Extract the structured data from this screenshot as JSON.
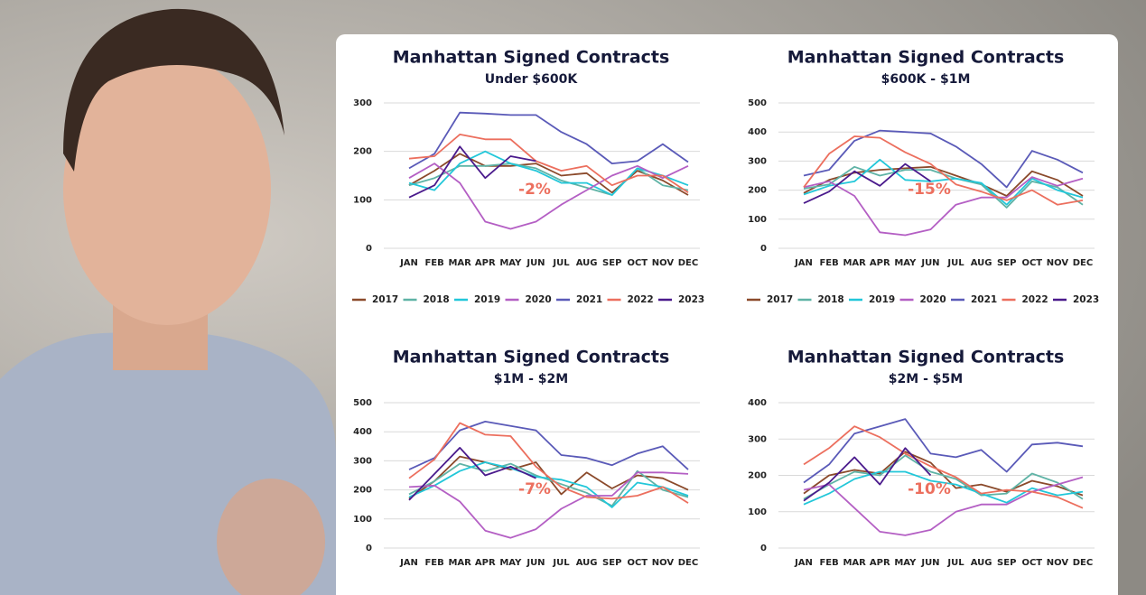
{
  "chart_data": [
    {
      "type": "line",
      "title": "Manhattan Signed Contracts",
      "subtitle": "Under $600K",
      "annotation": "-2%",
      "categories": [
        "JAN",
        "FEB",
        "MAR",
        "APR",
        "MAY",
        "JUN",
        "JUL",
        "AUG",
        "SEP",
        "OCT",
        "NOV",
        "DEC"
      ],
      "ylim": [
        0,
        300
      ],
      "yticks": [
        0,
        100,
        200,
        300
      ],
      "grid": true,
      "series": [
        {
          "name": "2017",
          "color": "#8b4a2b",
          "values": [
            130,
            160,
            195,
            170,
            170,
            175,
            150,
            155,
            115,
            160,
            140,
            110
          ]
        },
        {
          "name": "2018",
          "color": "#5fb3a6",
          "values": [
            130,
            145,
            170,
            170,
            175,
            165,
            140,
            125,
            110,
            165,
            130,
            120
          ]
        },
        {
          "name": "2019",
          "color": "#22c7d9",
          "values": [
            135,
            120,
            175,
            200,
            175,
            160,
            135,
            135,
            110,
            165,
            150,
            130
          ]
        },
        {
          "name": "2020",
          "color": "#b45fc4",
          "values": [
            145,
            175,
            135,
            55,
            40,
            55,
            90,
            120,
            150,
            170,
            145,
            170
          ]
        },
        {
          "name": "2021",
          "color": "#5a5ab8",
          "values": [
            165,
            195,
            280,
            278,
            275,
            275,
            240,
            215,
            175,
            180,
            215,
            178
          ]
        },
        {
          "name": "2022",
          "color": "#ec6f5e",
          "values": [
            185,
            190,
            235,
            225,
            225,
            180,
            160,
            170,
            130,
            150,
            150,
            115
          ]
        },
        {
          "name": "2023",
          "color": "#4a1a8c",
          "values": [
            105,
            130,
            210,
            145,
            190,
            180,
            null,
            null,
            null,
            null,
            null,
            null
          ]
        }
      ]
    },
    {
      "type": "line",
      "title": "Manhattan Signed Contracts",
      "subtitle": "$600K - $1M",
      "annotation": "-15%",
      "categories": [
        "JAN",
        "FEB",
        "MAR",
        "APR",
        "MAY",
        "JUN",
        "JUL",
        "AUG",
        "SEP",
        "OCT",
        "NOV",
        "DEC"
      ],
      "ylim": [
        0,
        500
      ],
      "yticks": [
        0,
        100,
        200,
        300,
        400,
        500
      ],
      "grid": true,
      "series": [
        {
          "name": "2017",
          "color": "#8b4a2b",
          "values": [
            190,
            235,
            260,
            270,
            275,
            280,
            250,
            220,
            180,
            265,
            235,
            180
          ]
        },
        {
          "name": "2018",
          "color": "#5fb3a6",
          "values": [
            205,
            220,
            280,
            250,
            270,
            270,
            240,
            220,
            140,
            230,
            210,
            150
          ]
        },
        {
          "name": "2019",
          "color": "#22c7d9",
          "values": [
            185,
            215,
            230,
            305,
            235,
            230,
            240,
            225,
            150,
            240,
            200,
            175
          ]
        },
        {
          "name": "2020",
          "color": "#b45fc4",
          "values": [
            210,
            230,
            180,
            55,
            45,
            65,
            150,
            175,
            175,
            245,
            215,
            240
          ]
        },
        {
          "name": "2021",
          "color": "#5a5ab8",
          "values": [
            250,
            270,
            370,
            405,
            400,
            395,
            350,
            290,
            210,
            335,
            305,
            260
          ]
        },
        {
          "name": "2022",
          "color": "#ec6f5e",
          "values": [
            210,
            325,
            385,
            380,
            330,
            290,
            220,
            195,
            165,
            200,
            150,
            165
          ]
        },
        {
          "name": "2023",
          "color": "#4a1a8c",
          "values": [
            155,
            195,
            265,
            215,
            290,
            230,
            null,
            null,
            null,
            null,
            null,
            null
          ]
        }
      ]
    },
    {
      "type": "line",
      "title": "Manhattan Signed Contracts",
      "subtitle": "$1M - $2M",
      "annotation": "-7%",
      "categories": [
        "JAN",
        "FEB",
        "MAR",
        "APR",
        "MAY",
        "JUN",
        "JUL",
        "AUG",
        "SEP",
        "OCT",
        "NOV",
        "DEC"
      ],
      "ylim": [
        0,
        500
      ],
      "yticks": [
        0,
        100,
        200,
        300,
        400,
        500
      ],
      "grid": true,
      "series": [
        {
          "color": "#8b4a2b",
          "values": [
            170,
            230,
            315,
            295,
            270,
            295,
            185,
            260,
            205,
            250,
            240,
            200
          ]
        },
        {
          "color": "#5fb3a6",
          "values": [
            185,
            230,
            290,
            265,
            290,
            250,
            220,
            190,
            145,
            265,
            200,
            175
          ]
        },
        {
          "color": "#22c7d9",
          "values": [
            175,
            215,
            265,
            295,
            275,
            245,
            235,
            210,
            140,
            225,
            210,
            180
          ]
        },
        {
          "color": "#b45fc4",
          "values": [
            210,
            215,
            160,
            60,
            35,
            65,
            135,
            180,
            180,
            260,
            260,
            255
          ]
        },
        {
          "color": "#5a5ab8",
          "values": [
            270,
            310,
            405,
            435,
            420,
            405,
            320,
            310,
            285,
            325,
            350,
            270
          ]
        },
        {
          "color": "#ec6f5e",
          "values": [
            240,
            305,
            430,
            390,
            385,
            280,
            210,
            175,
            170,
            180,
            210,
            155
          ]
        },
        {
          "color": "#4a1a8c",
          "values": [
            165,
            255,
            345,
            250,
            280,
            240,
            null,
            null,
            null,
            null,
            null,
            null
          ]
        }
      ]
    },
    {
      "type": "line",
      "title": "Manhattan Signed Contracts",
      "subtitle": "$2M - $5M",
      "annotation": "-10%",
      "categories": [
        "JAN",
        "FEB",
        "MAR",
        "APR",
        "MAY",
        "JUN",
        "JUL",
        "AUG",
        "SEP",
        "OCT",
        "NOV",
        "DEC"
      ],
      "ylim": [
        0,
        400
      ],
      "yticks": [
        0,
        100,
        200,
        300,
        400
      ],
      "grid": true,
      "series": [
        {
          "color": "#8b4a2b",
          "values": [
            150,
            200,
            215,
            205,
            265,
            235,
            165,
            175,
            155,
            185,
            170,
            145
          ]
        },
        {
          "color": "#5fb3a6",
          "values": [
            135,
            175,
            210,
            200,
            255,
            210,
            190,
            145,
            150,
            205,
            180,
            135
          ]
        },
        {
          "color": "#22c7d9",
          "values": [
            120,
            150,
            190,
            210,
            210,
            185,
            175,
            150,
            125,
            165,
            145,
            155
          ]
        },
        {
          "color": "#b45fc4",
          "values": [
            160,
            175,
            110,
            45,
            35,
            50,
            100,
            120,
            120,
            155,
            175,
            195
          ]
        },
        {
          "color": "#5a5ab8",
          "values": [
            180,
            230,
            315,
            335,
            355,
            260,
            250,
            270,
            210,
            285,
            290,
            280
          ]
        },
        {
          "color": "#ec6f5e",
          "values": [
            230,
            275,
            335,
            305,
            260,
            225,
            195,
            150,
            160,
            155,
            140,
            110
          ]
        },
        {
          "color": "#4a1a8c",
          "values": [
            130,
            180,
            250,
            175,
            275,
            200,
            null,
            null,
            null,
            null,
            null,
            null
          ]
        }
      ]
    }
  ]
}
